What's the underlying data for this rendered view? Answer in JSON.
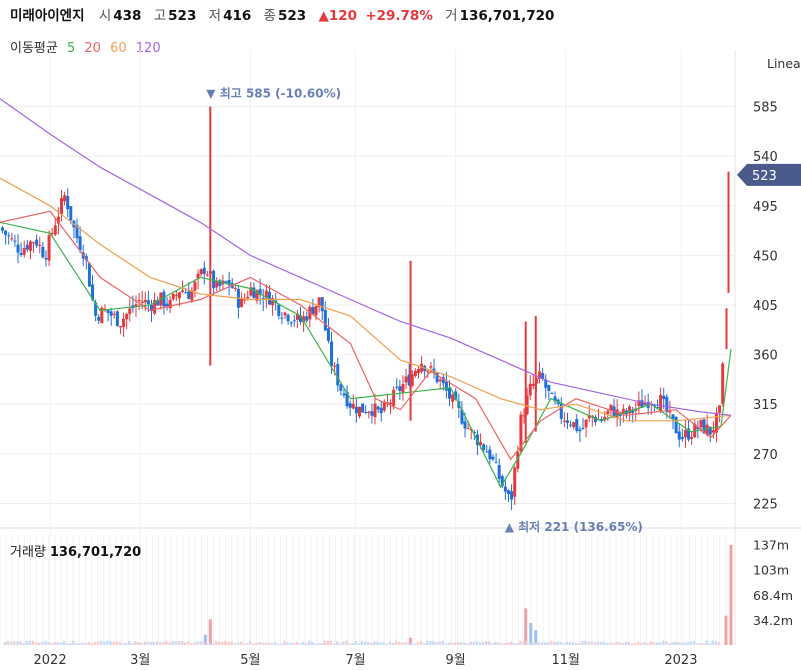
{
  "header": {
    "name": "미래아이엔지",
    "open_label": "시",
    "open": "438",
    "high_label": "고",
    "high": "523",
    "low_label": "저",
    "low": "416",
    "close_label": "종",
    "close": "523",
    "change": "▲120",
    "change_pct": "+29.78%",
    "volume_label": "거",
    "volume": "136,701,720"
  },
  "ma_legend": {
    "label": "이동평균",
    "items": [
      {
        "name": "5",
        "color": "#3cb44b"
      },
      {
        "name": "20",
        "color": "#f06262"
      },
      {
        "name": "60",
        "color": "#f0a050"
      },
      {
        "name": "120",
        "color": "#a365e8"
      }
    ]
  },
  "scale_label": "Linea",
  "price_badge": "523",
  "high_marker": "▼ 최고 585 (-10.60%)",
  "low_marker": "▲ 최저 221 (136.65%)",
  "volume_panel": {
    "label": "거래량",
    "value": "136,701,720"
  },
  "colors": {
    "up": "#e5393e",
    "down": "#1e6fd9",
    "badge": "#4a5a8a",
    "marker": "#6a7fb5"
  },
  "chart_data": [
    {
      "type": "candlestick",
      "y_ticks": [
        "585",
        "540",
        "495",
        "450",
        "405",
        "360",
        "315",
        "270",
        "225"
      ],
      "ylim": [
        210,
        600
      ],
      "x_ticks": [
        "2022",
        "3월",
        "5월",
        "7월",
        "9월",
        "11월",
        "2023"
      ],
      "x_tick_positions": [
        0.1,
        0.28,
        0.5,
        0.71,
        0.91,
        1.13,
        1.36
      ],
      "high": 585,
      "low": 221,
      "last": 523,
      "close_path": [
        [
          0.0,
          475
        ],
        [
          0.04,
          455
        ],
        [
          0.07,
          465
        ],
        [
          0.09,
          450
        ],
        [
          0.11,
          480
        ],
        [
          0.13,
          505
        ],
        [
          0.15,
          470
        ],
        [
          0.17,
          450
        ],
        [
          0.19,
          395
        ],
        [
          0.21,
          400
        ],
        [
          0.24,
          390
        ],
        [
          0.26,
          400
        ],
        [
          0.28,
          410
        ],
        [
          0.3,
          405
        ],
        [
          0.32,
          410
        ],
        [
          0.34,
          405
        ],
        [
          0.36,
          420
        ],
        [
          0.38,
          415
        ],
        [
          0.41,
          440
        ],
        [
          0.43,
          420
        ],
        [
          0.46,
          425
        ],
        [
          0.48,
          405
        ],
        [
          0.5,
          420
        ],
        [
          0.52,
          415
        ],
        [
          0.54,
          412
        ],
        [
          0.56,
          400
        ],
        [
          0.58,
          395
        ],
        [
          0.6,
          390
        ],
        [
          0.62,
          400
        ],
        [
          0.64,
          410
        ],
        [
          0.66,
          355
        ],
        [
          0.68,
          330
        ],
        [
          0.7,
          315
        ],
        [
          0.72,
          310
        ],
        [
          0.74,
          312
        ],
        [
          0.76,
          306
        ],
        [
          0.78,
          318
        ],
        [
          0.8,
          330
        ],
        [
          0.82,
          340
        ],
        [
          0.84,
          355
        ],
        [
          0.86,
          345
        ],
        [
          0.88,
          335
        ],
        [
          0.9,
          320
        ],
        [
          0.92,
          305
        ],
        [
          0.94,
          290
        ],
        [
          0.96,
          280
        ],
        [
          0.98,
          268
        ],
        [
          1.0,
          245
        ],
        [
          1.02,
          225
        ],
        [
          1.04,
          300
        ],
        [
          1.06,
          330
        ],
        [
          1.08,
          340
        ],
        [
          1.1,
          320
        ],
        [
          1.12,
          305
        ],
        [
          1.14,
          300
        ],
        [
          1.16,
          290
        ],
        [
          1.18,
          305
        ],
        [
          1.2,
          300
        ],
        [
          1.22,
          310
        ],
        [
          1.24,
          305
        ],
        [
          1.26,
          308
        ],
        [
          1.28,
          315
        ],
        [
          1.3,
          320
        ],
        [
          1.32,
          318
        ],
        [
          1.34,
          300
        ],
        [
          1.36,
          285
        ],
        [
          1.38,
          290
        ],
        [
          1.4,
          295
        ],
        [
          1.42,
          290
        ],
        [
          1.44,
          310
        ],
        [
          1.46,
          523
        ]
      ],
      "spikes": [
        [
          0.42,
          585,
          350
        ],
        [
          0.82,
          445,
          300
        ],
        [
          1.05,
          390,
          280
        ],
        [
          1.07,
          395,
          290
        ]
      ],
      "ma_paths": {
        "ma5": [
          [
            0.0,
            480
          ],
          [
            0.1,
            470
          ],
          [
            0.2,
            400
          ],
          [
            0.3,
            405
          ],
          [
            0.4,
            430
          ],
          [
            0.5,
            420
          ],
          [
            0.6,
            395
          ],
          [
            0.7,
            320
          ],
          [
            0.8,
            325
          ],
          [
            0.9,
            330
          ],
          [
            1.0,
            240
          ],
          [
            1.04,
            270
          ],
          [
            1.1,
            320
          ],
          [
            1.2,
            300
          ],
          [
            1.3,
            315
          ],
          [
            1.38,
            290
          ],
          [
            1.44,
            295
          ],
          [
            1.46,
            365
          ]
        ],
        "ma20": [
          [
            0.0,
            480
          ],
          [
            0.1,
            490
          ],
          [
            0.2,
            430
          ],
          [
            0.3,
            400
          ],
          [
            0.4,
            410
          ],
          [
            0.5,
            430
          ],
          [
            0.6,
            405
          ],
          [
            0.7,
            370
          ],
          [
            0.75,
            320
          ],
          [
            0.8,
            310
          ],
          [
            0.86,
            345
          ],
          [
            0.95,
            320
          ],
          [
            1.02,
            265
          ],
          [
            1.08,
            300
          ],
          [
            1.15,
            320
          ],
          [
            1.25,
            305
          ],
          [
            1.35,
            310
          ],
          [
            1.42,
            285
          ],
          [
            1.46,
            305
          ]
        ],
        "ma60": [
          [
            0.0,
            520
          ],
          [
            0.1,
            495
          ],
          [
            0.2,
            460
          ],
          [
            0.3,
            430
          ],
          [
            0.4,
            415
          ],
          [
            0.5,
            410
          ],
          [
            0.6,
            410
          ],
          [
            0.7,
            395
          ],
          [
            0.8,
            355
          ],
          [
            0.9,
            340
          ],
          [
            1.0,
            320
          ],
          [
            1.08,
            310
          ],
          [
            1.15,
            315
          ],
          [
            1.25,
            300
          ],
          [
            1.35,
            300
          ],
          [
            1.46,
            305
          ]
        ],
        "ma120": [
          [
            0.0,
            592
          ],
          [
            0.1,
            560
          ],
          [
            0.2,
            530
          ],
          [
            0.3,
            505
          ],
          [
            0.4,
            480
          ],
          [
            0.5,
            450
          ],
          [
            0.6,
            430
          ],
          [
            0.7,
            410
          ],
          [
            0.8,
            390
          ],
          [
            0.9,
            375
          ],
          [
            1.0,
            355
          ],
          [
            1.1,
            335
          ],
          [
            1.2,
            325
          ],
          [
            1.3,
            315
          ],
          [
            1.4,
            308
          ],
          [
            1.46,
            305
          ]
        ]
      }
    },
    {
      "type": "bar",
      "name": "거래량",
      "y_ticks": [
        "137m",
        "103m",
        "68.4m",
        "34.2m"
      ],
      "ylim": [
        0,
        150
      ],
      "last": 136.7,
      "bars": [
        [
          0.42,
          35,
          "up"
        ],
        [
          0.41,
          14,
          "down"
        ],
        [
          0.82,
          10,
          "up"
        ],
        [
          1.05,
          50,
          "up"
        ],
        [
          1.06,
          30,
          "down"
        ],
        [
          1.07,
          20,
          "down"
        ],
        [
          1.46,
          136.7,
          "up"
        ],
        [
          1.45,
          40,
          "up"
        ]
      ]
    }
  ]
}
